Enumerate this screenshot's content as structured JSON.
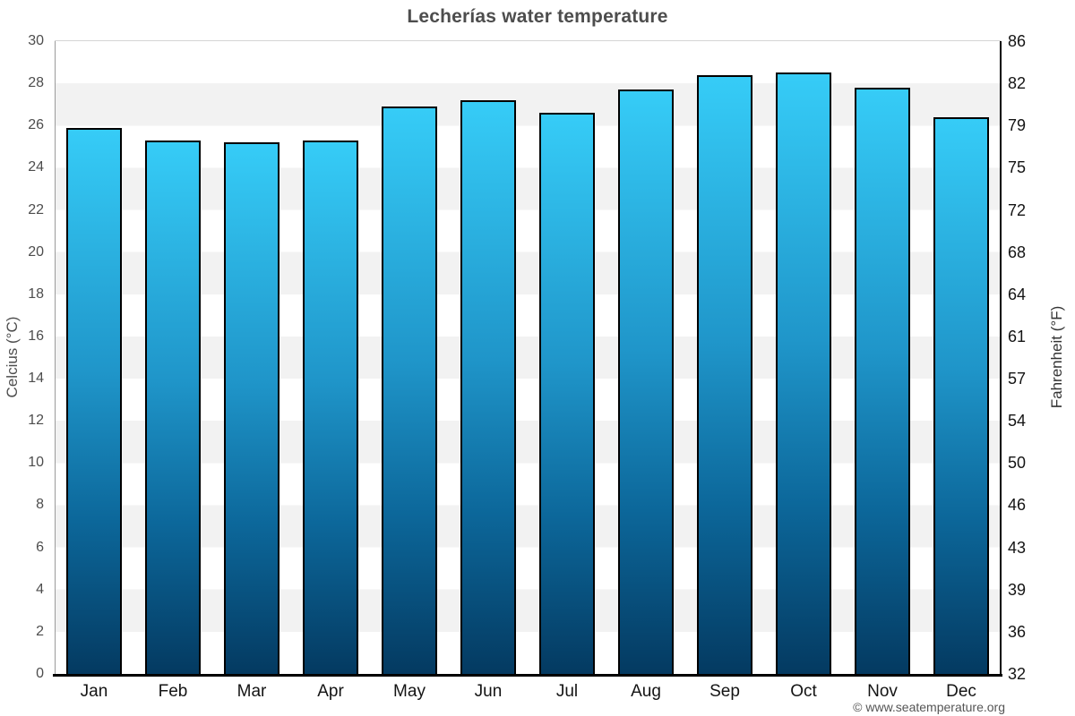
{
  "header": {
    "title": "Lecherías water temperature"
  },
  "footer": {
    "credit": "© www.seatemperature.org"
  },
  "chart_data": {
    "type": "bar",
    "title": "Lecherías water temperature",
    "categories": [
      "Jan",
      "Feb",
      "Mar",
      "Apr",
      "May",
      "Jun",
      "Jul",
      "Aug",
      "Sep",
      "Oct",
      "Nov",
      "Dec"
    ],
    "values": [
      25.9,
      25.3,
      25.2,
      25.3,
      26.9,
      27.2,
      26.6,
      27.7,
      28.4,
      28.5,
      27.8,
      26.4
    ],
    "unit": "°C",
    "xlabel": "",
    "ylabel_left": "Celcius (°C)",
    "ylabel_right": "Fahrenheit (°F)",
    "ylim_left": [
      0,
      30
    ],
    "yticks_left": [
      0,
      2,
      4,
      6,
      8,
      10,
      12,
      14,
      16,
      18,
      20,
      22,
      24,
      26,
      28,
      30
    ],
    "yticks_right": [
      "32",
      "36",
      "39",
      "43",
      "46",
      "50",
      "54",
      "57",
      "61",
      "64",
      "68",
      "72",
      "75",
      "79",
      "82",
      "86"
    ],
    "grid": "alternating-horizontal-bands",
    "legend": "none",
    "colors": {
      "bar_gradient_top": "#36ccf7",
      "bar_gradient_bottom": "#043a61",
      "bar_border": "#000000",
      "band_gray": "#f2f2f2",
      "band_white": "#ffffff",
      "bottom_axis": "#000000",
      "title_color": "#4d4d4d"
    }
  }
}
